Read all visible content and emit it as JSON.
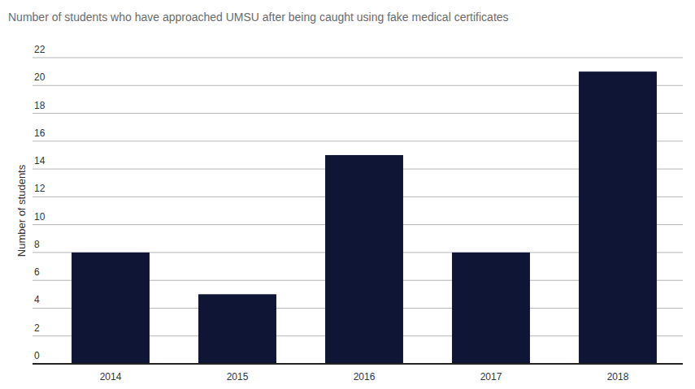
{
  "chart_data": {
    "type": "bar",
    "title": "Number of students who have approached UMSU after being caught using fake medical certificates",
    "y_label": "Number of students",
    "categories": [
      "2014",
      "2015",
      "2016",
      "2017",
      "2018"
    ],
    "values": [
      8,
      5,
      15,
      8,
      21
    ],
    "color": "#0f1535",
    "ylim": [
      0,
      22
    ],
    "yticks": [
      0,
      2,
      4,
      6,
      8,
      10,
      12,
      14,
      16,
      18,
      20,
      22
    ],
    "grid": true
  }
}
